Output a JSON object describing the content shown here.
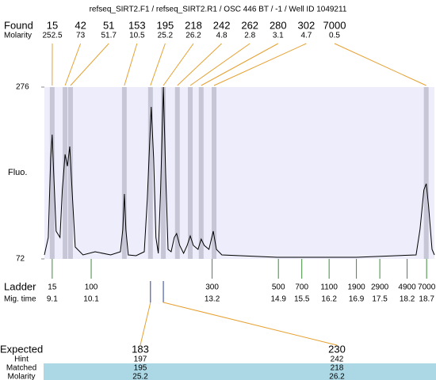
{
  "chart_data": {
    "type": "electropherogram",
    "title": "refseq_SIRT2.F1 / refseq_SIRT2.R1 / OSC 446 BT / -1 / Well ID 1049211",
    "found_label": "Found",
    "molarity_label": "Molarity",
    "ylabel": "Fluo.",
    "ladder_label": "Ladder",
    "migtime_label": "Mig. time",
    "expected_label": "Expected",
    "hint_label": "Hint",
    "matched_label": "Matched",
    "molarity_row_label": "Molarity",
    "peaks": {
      "found": [
        15,
        42,
        51,
        153,
        195,
        218,
        242,
        262,
        280,
        302,
        7000
      ],
      "molarity": [
        252.5,
        73,
        51.7,
        10.5,
        25.2,
        26.2,
        4.8,
        2.8,
        3.1,
        4.7,
        0.5
      ],
      "times": [
        9.1,
        9.43,
        9.57,
        10.95,
        11.62,
        11.95,
        12.31,
        12.64,
        12.92,
        13.25,
        18.69
      ]
    },
    "ladder": {
      "sizes": [
        15,
        100,
        300,
        500,
        700,
        1100,
        1900,
        2900,
        4900,
        7000
      ],
      "mig_time": [
        9.1,
        10.1,
        13.2,
        14.9,
        15.5,
        16.2,
        16.9,
        17.5,
        18.2,
        18.7
      ]
    },
    "x": [
      8.9,
      9.0,
      9.06,
      9.1,
      9.14,
      9.2,
      9.3,
      9.36,
      9.43,
      9.49,
      9.55,
      9.61,
      9.69,
      9.89,
      10.2,
      10.6,
      10.85,
      10.91,
      10.95,
      10.99,
      11.05,
      11.25,
      11.46,
      11.54,
      11.6,
      11.64,
      11.7,
      11.76,
      11.82,
      11.88,
      11.95,
      12.01,
      12.07,
      12.15,
      12.23,
      12.29,
      12.37,
      12.47,
      12.56,
      12.64,
      12.72,
      12.84,
      12.92,
      13.0,
      13.12,
      13.23,
      13.31,
      13.45,
      14.87,
      16.9,
      18.43,
      18.53,
      18.63,
      18.69,
      18.75,
      18.84,
      18.9
    ],
    "y": [
      76.7,
      97.4,
      191.4,
      219.6,
      172.6,
      104.9,
      97.4,
      153.8,
      196.1,
      182.0,
      205.5,
      153.8,
      86.1,
      76.7,
      80.5,
      76.7,
      80.5,
      106.8,
      149.1,
      106.8,
      76.7,
      75.8,
      80.5,
      144.4,
      210.2,
      252.5,
      191.4,
      97.4,
      78.6,
      153.8,
      276,
      172.6,
      83.3,
      80.5,
      97.4,
      102.1,
      88.0,
      78.6,
      88.0,
      99.3,
      88.0,
      83.3,
      95.5,
      88.0,
      83.3,
      104.9,
      83.3,
      76.7,
      73.9,
      73.9,
      76.7,
      106.8,
      153.8,
      161.3,
      135.0,
      83.3,
      76.7
    ],
    "xlim": [
      8.9,
      18.9
    ],
    "ylim": [
      72,
      276
    ],
    "yticks": [
      72,
      276
    ],
    "expected": {
      "expected": [
        183,
        230
      ],
      "hint": [
        197,
        242
      ],
      "matched": [
        195,
        218
      ],
      "molarity": [
        25.2,
        26.2
      ]
    },
    "colors": {
      "plot": "#ededfb",
      "band": "#c6c6d6",
      "link": "#e6a030",
      "ladder": "#3c8c3c",
      "match": "#2a3e9a",
      "row": "#acd8e6",
      "trace": "#000000"
    }
  }
}
